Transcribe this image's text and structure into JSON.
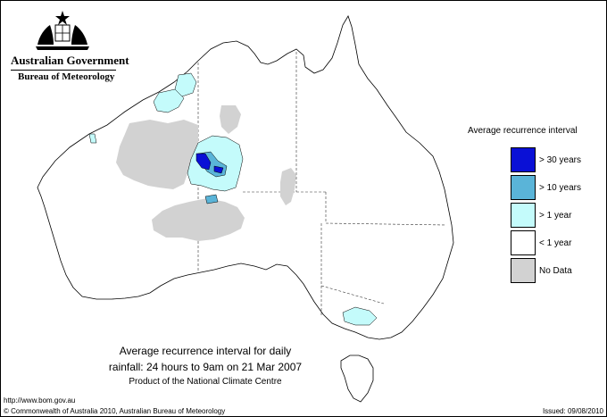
{
  "header": {
    "government": "Australian Government",
    "bureau": "Bureau of Meteorology",
    "crest_icon": "commonwealth-coat-of-arms"
  },
  "legend": {
    "title": "Average recurrence interval",
    "items": [
      {
        "label": "> 30 years",
        "color": "#0a10d6"
      },
      {
        "label": "> 10 years",
        "color": "#5ab4d8"
      },
      {
        "label": "> 1 year",
        "color": "#c4fbfb"
      },
      {
        "label": "< 1 year",
        "color": "#ffffff"
      },
      {
        "label": "No Data",
        "color": "#d2d2d2"
      }
    ]
  },
  "caption": {
    "line1": "Average recurrence interval for daily",
    "line2": "rainfall: 24 hours to 9am on 21 Mar 2007",
    "line3": "Product of the National Climate Centre"
  },
  "footer": {
    "url": "http://www.bom.gov.au",
    "copyright": "© Commonwealth of Australia 2010, Australian Bureau of Meteorology",
    "issued": "Issued: 09/08/2010"
  }
}
